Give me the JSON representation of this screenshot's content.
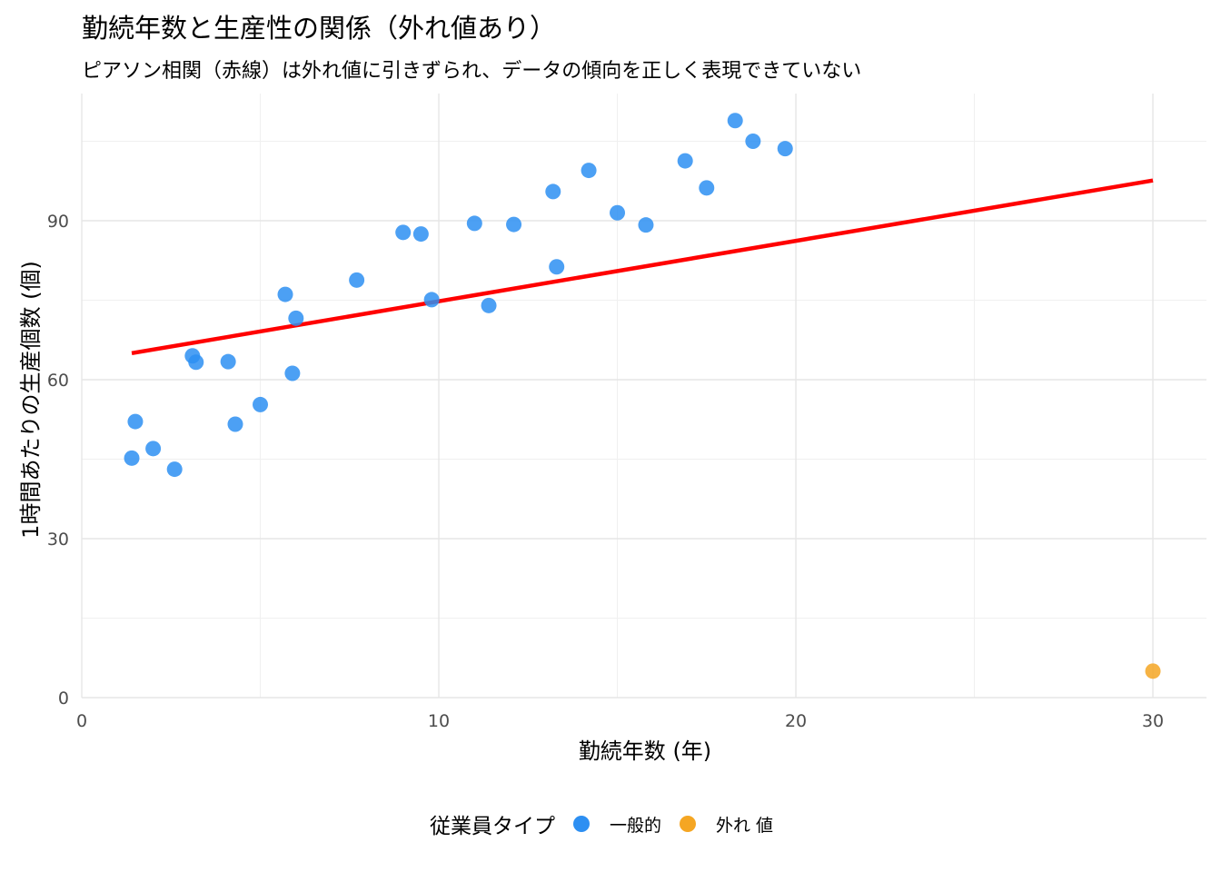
{
  "title": "勤続年数と生産性の関係（外れ値あり）",
  "subtitle": "ピアソン相関（赤線）は外れ値に引きずられ、データの傾向を正しく表現できていない",
  "legend": {
    "title": "従業員タイプ",
    "items": [
      {
        "label": "一般的",
        "color": "#2D8FF2"
      },
      {
        "label": "外れ 値",
        "color": "#F5A623"
      }
    ]
  },
  "chart_data": {
    "type": "scatter",
    "xlabel": "勤続年数 (年)",
    "ylabel": "1時間あたりの生産個数 (個)",
    "xlim": [
      0,
      31.5
    ],
    "ylim": [
      0,
      114
    ],
    "x_ticks": [
      0,
      10,
      20,
      30
    ],
    "y_ticks": [
      0,
      30,
      60,
      90
    ],
    "grid": true,
    "legend_position": "bottom",
    "series": [
      {
        "name": "一般的",
        "color": "#2D8FF2",
        "points": [
          {
            "x": 1.4,
            "y": 45.2
          },
          {
            "x": 1.5,
            "y": 52.1
          },
          {
            "x": 2.0,
            "y": 47.0
          },
          {
            "x": 2.6,
            "y": 43.1
          },
          {
            "x": 3.1,
            "y": 64.5
          },
          {
            "x": 3.2,
            "y": 63.3
          },
          {
            "x": 4.1,
            "y": 63.4
          },
          {
            "x": 4.3,
            "y": 51.6
          },
          {
            "x": 5.0,
            "y": 55.3
          },
          {
            "x": 5.7,
            "y": 76.1
          },
          {
            "x": 5.9,
            "y": 61.2
          },
          {
            "x": 6.0,
            "y": 71.6
          },
          {
            "x": 7.7,
            "y": 78.8
          },
          {
            "x": 9.0,
            "y": 87.8
          },
          {
            "x": 9.5,
            "y": 87.5
          },
          {
            "x": 9.8,
            "y": 75.1
          },
          {
            "x": 11.0,
            "y": 89.5
          },
          {
            "x": 11.4,
            "y": 74.0
          },
          {
            "x": 12.1,
            "y": 89.3
          },
          {
            "x": 13.2,
            "y": 95.5
          },
          {
            "x": 13.3,
            "y": 81.3
          },
          {
            "x": 14.2,
            "y": 99.5
          },
          {
            "x": 15.0,
            "y": 91.5
          },
          {
            "x": 15.8,
            "y": 89.2
          },
          {
            "x": 16.9,
            "y": 101.3
          },
          {
            "x": 17.5,
            "y": 96.2
          },
          {
            "x": 18.3,
            "y": 108.9
          },
          {
            "x": 18.8,
            "y": 105.0
          },
          {
            "x": 19.7,
            "y": 103.6
          }
        ]
      },
      {
        "name": "外れ 値",
        "color": "#F5A623",
        "points": [
          {
            "x": 30.0,
            "y": 5.0
          }
        ]
      }
    ],
    "regression_line": {
      "color": "#FF0000",
      "x": [
        1.4,
        30.0
      ],
      "y": [
        65.0,
        97.6
      ]
    }
  }
}
